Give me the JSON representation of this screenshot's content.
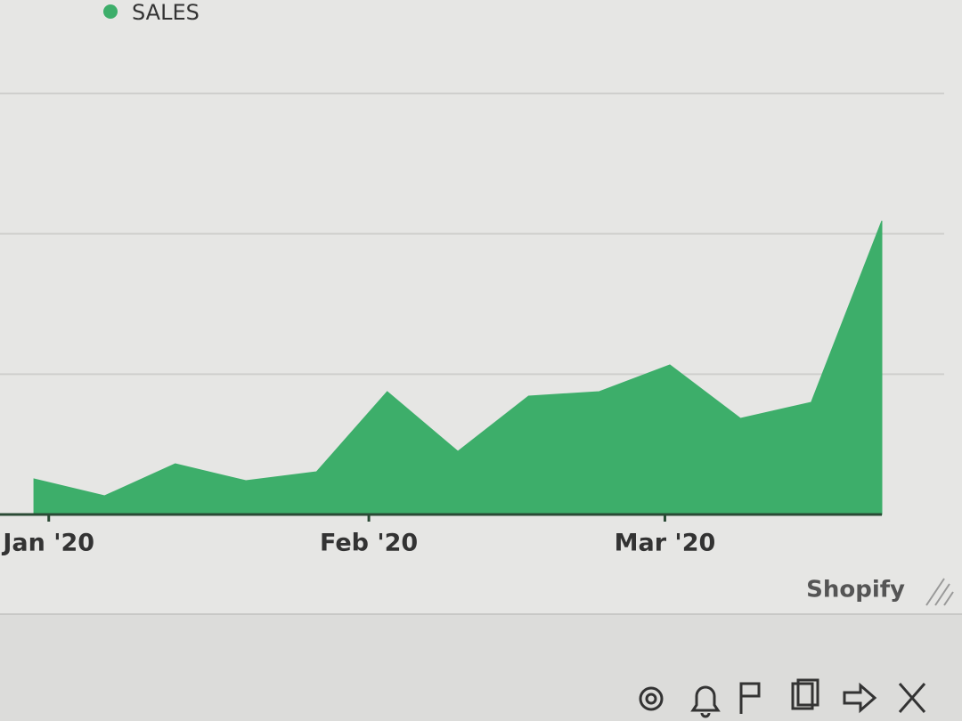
{
  "chart_data": {
    "type": "area",
    "categories": [
      null,
      null,
      null,
      null,
      null,
      null,
      null,
      null,
      null,
      null,
      null,
      null,
      null
    ],
    "series": [
      {
        "name": "SALES",
        "color": "#3dae6a",
        "values": [
          40,
          21,
          57,
          38,
          48,
          138,
          71,
          133,
          138,
          168,
          108,
          126,
          330
        ]
      }
    ],
    "xlim": [
      -0.48,
      12
    ],
    "xticks": [
      {
        "value": 0.21,
        "label": "Jan '20"
      },
      {
        "value": 4.74,
        "label": "Feb '20"
      },
      {
        "value": 8.93,
        "label": "Mar '20"
      }
    ],
    "ylim": [
      0,
      473
    ],
    "grid": true,
    "legend": "top-left"
  },
  "footer_text": "Shopify"
}
